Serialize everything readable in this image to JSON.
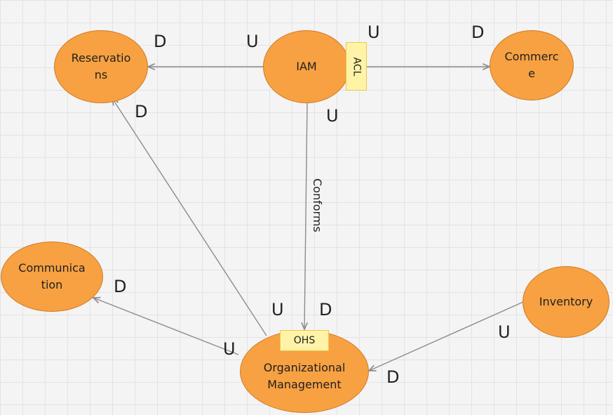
{
  "nodes": {
    "reservations": [
      "Reservatio",
      "ns"
    ],
    "iam": [
      "IAM"
    ],
    "commerce": [
      "Commerc",
      "e"
    ],
    "communication": [
      "Communica",
      "tion"
    ],
    "organizational": [
      "Organizational",
      "Management"
    ],
    "inventory": [
      "Inventory"
    ]
  },
  "tags": {
    "acl": "ACL",
    "ohs": "OHS"
  },
  "relation_label": "Conforms",
  "markers": {
    "res_d": "D",
    "iam_u_left": "U",
    "iam_u_right": "U",
    "com_d": "D",
    "res_d2": "D",
    "iam_u_down": "U",
    "comm_d": "D",
    "org_u_top": "U",
    "org_d_top": "D",
    "org_u_left": "U",
    "inv_u": "U",
    "org_d_right": "D"
  },
  "colors": {
    "node_fill": "#f7a142",
    "node_border": "#d27a24",
    "tag_fill": "#fff3a8",
    "edge": "#8c8c8c"
  }
}
